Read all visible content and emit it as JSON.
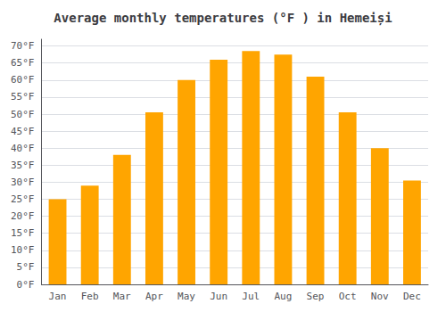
{
  "chart_data": {
    "type": "bar",
    "title": "Average monthly temperatures (°F ) in Hemeiși",
    "categories": [
      "Jan",
      "Feb",
      "Mar",
      "Apr",
      "May",
      "Jun",
      "Jul",
      "Aug",
      "Sep",
      "Oct",
      "Nov",
      "Dec"
    ],
    "values": [
      25,
      29,
      38,
      50.5,
      60,
      66,
      68.5,
      67.5,
      61,
      50.5,
      40,
      30.5
    ],
    "color": "#FFA500",
    "ylim": [
      0,
      72
    ],
    "yticks": [
      {
        "value": 0,
        "label": "0°F"
      },
      {
        "value": 5,
        "label": "5°F"
      },
      {
        "value": 10,
        "label": "10°F"
      },
      {
        "value": 15,
        "label": "15°F"
      },
      {
        "value": 20,
        "label": "20°F"
      },
      {
        "value": 25,
        "label": "25°F"
      },
      {
        "value": 30,
        "label": "30°F"
      },
      {
        "value": 35,
        "label": "35°F"
      },
      {
        "value": 40,
        "label": "40°F"
      },
      {
        "value": 45,
        "label": "45°F"
      },
      {
        "value": 50,
        "label": "50°F"
      },
      {
        "value": 55,
        "label": "55°F"
      },
      {
        "value": 60,
        "label": "60°F"
      },
      {
        "value": 65,
        "label": "65°F"
      },
      {
        "value": 70,
        "label": "70°F"
      }
    ],
    "grid": true
  }
}
